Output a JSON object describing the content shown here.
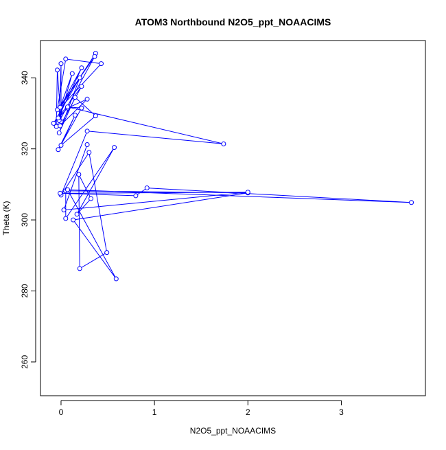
{
  "chart_data": {
    "type": "line",
    "title": "ATOM3 Northbound N2O5_ppt_NOAACIMS",
    "xlabel": "N2O5_ppt_NOAACIMS",
    "ylabel": "Theta (K)",
    "xlim": [
      -0.22,
      3.9
    ],
    "ylim": [
      250.5,
      350.5
    ],
    "xticks": [
      0,
      1,
      2,
      3
    ],
    "yticks": [
      260,
      280,
      300,
      320,
      340
    ],
    "marker": "open-circle",
    "grid": false,
    "series": [
      {
        "color": "#0000ff",
        "points": [
          [
            0.37,
            346.9
          ],
          [
            -0.02,
            331.2
          ],
          [
            0.43,
            344.0
          ],
          [
            0.05,
            345.3
          ],
          [
            -0.04,
            331.0
          ],
          [
            0.36,
            346.0
          ],
          [
            -0.05,
            326.3
          ],
          [
            -0.04,
            342.2
          ],
          [
            0.0,
            327.7
          ],
          [
            0.0,
            344.0
          ],
          [
            -0.02,
            328.0
          ],
          [
            0.12,
            341.2
          ],
          [
            -0.01,
            331.7
          ],
          [
            0.22,
            342.8
          ],
          [
            -0.03,
            328.7
          ],
          [
            0.22,
            337.6
          ],
          [
            -0.01,
            326.5
          ],
          [
            0.28,
            334.0
          ],
          [
            0.07,
            331.5
          ],
          [
            -0.08,
            327.2
          ],
          [
            0.2,
            340.0
          ],
          [
            -0.02,
            324.5
          ],
          [
            0.15,
            334.5
          ],
          [
            0.37,
            329.3
          ],
          [
            0.0,
            321.0
          ],
          [
            0.15,
            329.5
          ],
          [
            -0.03,
            319.8
          ],
          [
            0.22,
            331.5
          ],
          [
            0.07,
            331.8
          ],
          [
            1.74,
            321.4
          ],
          [
            0.28,
            325.0
          ],
          [
            0.0,
            307.0
          ],
          [
            0.3,
            319.0
          ],
          [
            0.49,
            290.8
          ],
          [
            0.2,
            286.3
          ],
          [
            0.19,
            312.8
          ],
          [
            0.32,
            306.0
          ],
          [
            0.17,
            301.6
          ],
          [
            0.57,
            320.4
          ],
          [
            0.05,
            300.4
          ],
          [
            0.05,
            308.2
          ],
          [
            2.0,
            307.6
          ],
          [
            0.13,
            300.0
          ],
          [
            0.59,
            283.4
          ],
          [
            0.07,
            308.5
          ],
          [
            3.75,
            304.9
          ],
          [
            0.92,
            309.0
          ],
          [
            0.8,
            306.8
          ],
          [
            -0.01,
            307.5
          ],
          [
            2.0,
            307.8
          ],
          [
            0.03,
            302.8
          ],
          [
            0.28,
            321.2
          ]
        ]
      }
    ]
  }
}
